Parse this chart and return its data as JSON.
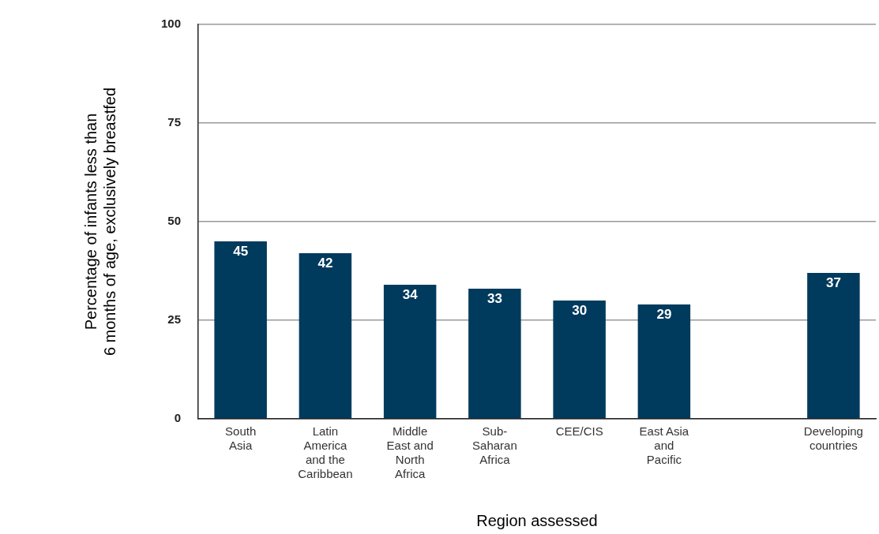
{
  "chart_data": {
    "type": "bar",
    "xlabel": "Region assessed",
    "ylabel": "Percentage  of infants less than 6 months of age, exclusively breastfed",
    "categories": [
      "South Asia",
      "Latin America and the Caribbean",
      "Middle East and North Africa",
      "Sub-Saharan Africa",
      "CEE/CIS",
      "East Asia and Pacific",
      null,
      "Developing countries"
    ],
    "values": [
      45,
      42,
      34,
      33,
      30,
      29,
      null,
      37
    ],
    "color": "#003a5d",
    "ylim": [
      0,
      100
    ],
    "yticks": [
      0,
      25,
      50,
      75,
      100
    ],
    "grid": "y",
    "data_labels": true,
    "legend": false
  }
}
